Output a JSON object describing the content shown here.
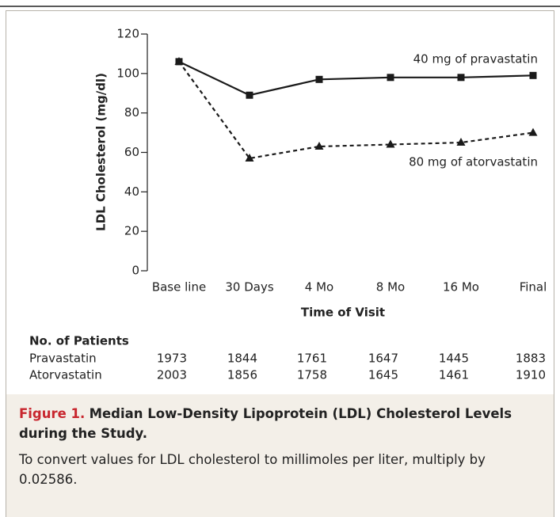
{
  "chart_data": {
    "type": "line",
    "ylabel": "LDL Cholesterol (mg/dl)",
    "xlabel": "Time of Visit",
    "categories": [
      "Base line",
      "30 Days",
      "4 Mo",
      "8 Mo",
      "16 Mo",
      "Final"
    ],
    "ylim": [
      0,
      120
    ],
    "yticks": [
      0,
      20,
      40,
      60,
      80,
      100,
      120
    ],
    "series": [
      {
        "name": "40 mg of pravastatin",
        "color": "#1a1a1a",
        "marker": "square",
        "line_style": "solid",
        "values": [
          106,
          89,
          97,
          98,
          98,
          99
        ]
      },
      {
        "name": "80 mg of atorvastatin",
        "color": "#1a1a1a",
        "marker": "triangle",
        "line_style": "dashed",
        "values": [
          106,
          57,
          63,
          64,
          65,
          70
        ]
      }
    ]
  },
  "patient_table": {
    "title": "No. of Patients",
    "rows": [
      {
        "name": "Pravastatin",
        "values": [
          1973,
          1844,
          1761,
          1647,
          1445,
          1883
        ]
      },
      {
        "name": "Atorvastatin",
        "values": [
          2003,
          1856,
          1758,
          1645,
          1461,
          1910
        ]
      }
    ]
  },
  "caption": {
    "label": "Figure 1.",
    "title": "Median Low-Density Lipoprotein (LDL) Cholesterol Levels during the Study.",
    "text": "To convert values for LDL cholesterol to millimoles per liter, multiply by 0.02586."
  }
}
